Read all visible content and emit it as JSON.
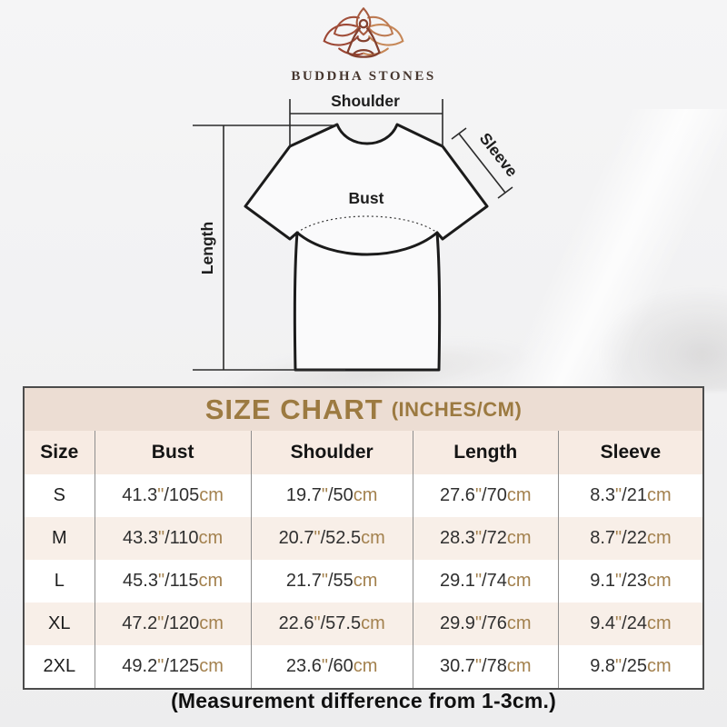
{
  "brand": {
    "name": "BUDDHA STONES"
  },
  "diagram": {
    "labels": {
      "shoulder": "Shoulder",
      "sleeve": "Sleeve",
      "bust": "Bust",
      "length": "Length"
    }
  },
  "table": {
    "title": "SIZE CHART",
    "title_suffix": "(INCHES/CM)",
    "headers": [
      "Size",
      "Bust",
      "Shoulder",
      "Length",
      "Sleeve"
    ],
    "tokens": {
      "inch_mark": "\"",
      "slash": "/",
      "cm_suffix": "cm"
    },
    "rows": [
      {
        "size": "S",
        "bust": {
          "in": "41.3",
          "cm": "105"
        },
        "shoulder": {
          "in": "19.7",
          "cm": "50"
        },
        "length": {
          "in": "27.6",
          "cm": "70"
        },
        "sleeve": {
          "in": "8.3",
          "cm": "21"
        }
      },
      {
        "size": "M",
        "bust": {
          "in": "43.3",
          "cm": "110"
        },
        "shoulder": {
          "in": "20.7",
          "cm": "52.5"
        },
        "length": {
          "in": "28.3",
          "cm": "72"
        },
        "sleeve": {
          "in": "8.7",
          "cm": "22"
        }
      },
      {
        "size": "L",
        "bust": {
          "in": "45.3",
          "cm": "115"
        },
        "shoulder": {
          "in": "21.7",
          "cm": "55"
        },
        "length": {
          "in": "29.1",
          "cm": "74"
        },
        "sleeve": {
          "in": "9.1",
          "cm": "23"
        }
      },
      {
        "size": "XL",
        "bust": {
          "in": "47.2",
          "cm": "120"
        },
        "shoulder": {
          "in": "22.6",
          "cm": "57.5"
        },
        "length": {
          "in": "29.9",
          "cm": "76"
        },
        "sleeve": {
          "in": "9.4",
          "cm": "24"
        }
      },
      {
        "size": "2XL",
        "bust": {
          "in": "49.2",
          "cm": "125"
        },
        "shoulder": {
          "in": "23.6",
          "cm": "60"
        },
        "length": {
          "in": "30.7",
          "cm": "78"
        },
        "sleeve": {
          "in": "9.8",
          "cm": "25"
        }
      }
    ],
    "caption": "(Measurement difference from 1-3cm.)"
  },
  "colors": {
    "title_band_bg": "#ecddd3",
    "title_text": "#9c7a41",
    "header_row_bg": "#f7ebe3",
    "alt_row_bg": "#f8efe8",
    "gold_accent": "#a3814e",
    "table_border": "#4c4c4c",
    "logo_red": "#a14f3a",
    "logo_tan": "#c07a52"
  }
}
